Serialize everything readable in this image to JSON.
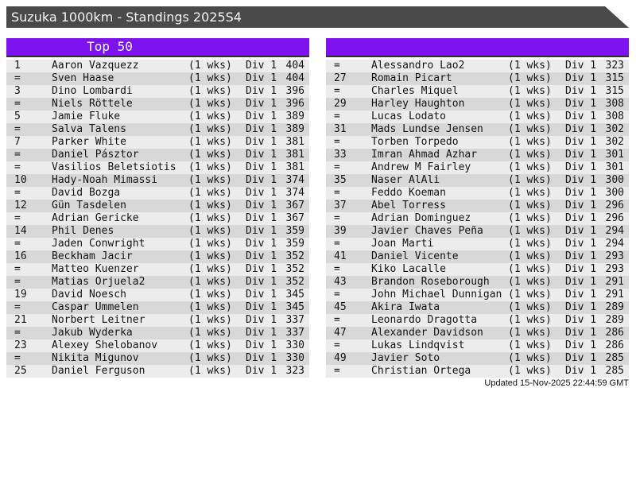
{
  "window": {
    "title": "Suzuka 1000km - Standings 2025S4"
  },
  "colors": {
    "accent_purple": "#7d11f0",
    "title_bar": "#4a4a4a",
    "row_light": "#ececec",
    "row_dark": "#d8d8d8",
    "header_underline": "#303030",
    "text": "#141414"
  },
  "left_table": {
    "header": "Top 50",
    "rows": [
      {
        "rank": "1",
        "name": "Aaron Vazquezz",
        "weeks": "(1 wks)",
        "division": "Div 1",
        "points": "404"
      },
      {
        "rank": "=",
        "name": "Sven Haase",
        "weeks": "(1 wks)",
        "division": "Div 1",
        "points": "404"
      },
      {
        "rank": "3",
        "name": "Dino Lombardi",
        "weeks": "(1 wks)",
        "division": "Div 1",
        "points": "396"
      },
      {
        "rank": "=",
        "name": "Niels Röttele",
        "weeks": "(1 wks)",
        "division": "Div 1",
        "points": "396"
      },
      {
        "rank": "5",
        "name": "Jamie Fluke",
        "weeks": "(1 wks)",
        "division": "Div 1",
        "points": "389"
      },
      {
        "rank": "=",
        "name": "Salva Talens",
        "weeks": "(1 wks)",
        "division": "Div 1",
        "points": "389"
      },
      {
        "rank": "7",
        "name": "Parker White",
        "weeks": "(1 wks)",
        "division": "Div 1",
        "points": "381"
      },
      {
        "rank": "=",
        "name": "Daniel Pásztor",
        "weeks": "(1 wks)",
        "division": "Div 1",
        "points": "381"
      },
      {
        "rank": "=",
        "name": "Vasilios Beletsiotis",
        "weeks": "(1 wks)",
        "division": "Div 1",
        "points": "381"
      },
      {
        "rank": "10",
        "name": "Hady-Noah Mimassi",
        "weeks": "(1 wks)",
        "division": "Div 1",
        "points": "374"
      },
      {
        "rank": "=",
        "name": "David Bozga",
        "weeks": "(1 wks)",
        "division": "Div 1",
        "points": "374"
      },
      {
        "rank": "12",
        "name": "Gün Tasdelen",
        "weeks": "(1 wks)",
        "division": "Div 1",
        "points": "367"
      },
      {
        "rank": "=",
        "name": "Adrian Gericke",
        "weeks": "(1 wks)",
        "division": "Div 1",
        "points": "367"
      },
      {
        "rank": "14",
        "name": "Phil Denes",
        "weeks": "(1 wks)",
        "division": "Div 1",
        "points": "359"
      },
      {
        "rank": "=",
        "name": "Jaden Conwright",
        "weeks": "(1 wks)",
        "division": "Div 1",
        "points": "359"
      },
      {
        "rank": "16",
        "name": "Beckham Jacir",
        "weeks": "(1 wks)",
        "division": "Div 1",
        "points": "352"
      },
      {
        "rank": "=",
        "name": "Matteo Kuenzer",
        "weeks": "(1 wks)",
        "division": "Div 1",
        "points": "352"
      },
      {
        "rank": "=",
        "name": "Matias Orjuela2",
        "weeks": "(1 wks)",
        "division": "Div 1",
        "points": "352"
      },
      {
        "rank": "19",
        "name": "David Noesch",
        "weeks": "(1 wks)",
        "division": "Div 1",
        "points": "345"
      },
      {
        "rank": "=",
        "name": "Caspar Ummelen",
        "weeks": "(1 wks)",
        "division": "Div 1",
        "points": "345"
      },
      {
        "rank": "21",
        "name": "Norbert Leitner",
        "weeks": "(1 wks)",
        "division": "Div 1",
        "points": "337"
      },
      {
        "rank": "=",
        "name": "Jakub Wyderka",
        "weeks": "(1 wks)",
        "division": "Div 1",
        "points": "337"
      },
      {
        "rank": "23",
        "name": "Alexey Shelobanov",
        "weeks": "(1 wks)",
        "division": "Div 1",
        "points": "330"
      },
      {
        "rank": "=",
        "name": "Nikita Migunov",
        "weeks": "(1 wks)",
        "division": "Div 1",
        "points": "330"
      },
      {
        "rank": "25",
        "name": "Daniel Ferguson",
        "weeks": "(1 wks)",
        "division": "Div 1",
        "points": "323"
      }
    ]
  },
  "right_table": {
    "header": "",
    "rows": [
      {
        "rank": "=",
        "name": "Alessandro Lao2",
        "weeks": "(1 wks)",
        "division": "Div 1",
        "points": "323"
      },
      {
        "rank": "27",
        "name": "Romain Picart",
        "weeks": "(1 wks)",
        "division": "Div 1",
        "points": "315"
      },
      {
        "rank": "=",
        "name": "Charles Miquel",
        "weeks": "(1 wks)",
        "division": "Div 1",
        "points": "315"
      },
      {
        "rank": "29",
        "name": "Harley Haughton",
        "weeks": "(1 wks)",
        "division": "Div 1",
        "points": "308"
      },
      {
        "rank": "=",
        "name": "Lucas Lodato",
        "weeks": "(1 wks)",
        "division": "Div 1",
        "points": "308"
      },
      {
        "rank": "31",
        "name": "Mads Lundse Jensen",
        "weeks": "(1 wks)",
        "division": "Div 1",
        "points": "302"
      },
      {
        "rank": "=",
        "name": "Torben Torpedo",
        "weeks": "(1 wks)",
        "division": "Div 1",
        "points": "302"
      },
      {
        "rank": "33",
        "name": "Imran Ahmad Azhar",
        "weeks": "(1 wks)",
        "division": "Div 1",
        "points": "301"
      },
      {
        "rank": "=",
        "name": "Andrew M Fairley",
        "weeks": "(1 wks)",
        "division": "Div 1",
        "points": "301"
      },
      {
        "rank": "35",
        "name": "Naser AlAli",
        "weeks": "(1 wks)",
        "division": "Div 1",
        "points": "300"
      },
      {
        "rank": "=",
        "name": "Feddo Koeman",
        "weeks": "(1 wks)",
        "division": "Div 1",
        "points": "300"
      },
      {
        "rank": "37",
        "name": "Abel Torress",
        "weeks": "(1 wks)",
        "division": "Div 1",
        "points": "296"
      },
      {
        "rank": "=",
        "name": "Adrian Dominguez",
        "weeks": "(1 wks)",
        "division": "Div 1",
        "points": "296"
      },
      {
        "rank": "39",
        "name": "Javier Chaves Peña",
        "weeks": "(1 wks)",
        "division": "Div 1",
        "points": "294"
      },
      {
        "rank": "=",
        "name": "Joan Marti",
        "weeks": "(1 wks)",
        "division": "Div 1",
        "points": "294"
      },
      {
        "rank": "41",
        "name": "Daniel Vicente",
        "weeks": "(1 wks)",
        "division": "Div 1",
        "points": "293"
      },
      {
        "rank": "=",
        "name": "Kiko Lacalle",
        "weeks": "(1 wks)",
        "division": "Div 1",
        "points": "293"
      },
      {
        "rank": "43",
        "name": "Brandon Roseborough",
        "weeks": "(1 wks)",
        "division": "Div 1",
        "points": "291"
      },
      {
        "rank": "=",
        "name": "John Michael Dunnigan",
        "weeks": "(1 wks)",
        "division": "Div 1",
        "points": "291"
      },
      {
        "rank": "45",
        "name": "Akira Iwata",
        "weeks": "(1 wks)",
        "division": "Div 1",
        "points": "289"
      },
      {
        "rank": "=",
        "name": "Leonardo Dragotta",
        "weeks": "(1 wks)",
        "division": "Div 1",
        "points": "289"
      },
      {
        "rank": "47",
        "name": "Alexander Davidson",
        "weeks": "(1 wks)",
        "division": "Div 1",
        "points": "286"
      },
      {
        "rank": "=",
        "name": "Lukas Lindqvist",
        "weeks": "(1 wks)",
        "division": "Div 1",
        "points": "286"
      },
      {
        "rank": "49",
        "name": "Javier Soto",
        "weeks": "(1 wks)",
        "division": "Div 1",
        "points": "285"
      },
      {
        "rank": "=",
        "name": "Christian Ortega",
        "weeks": "(1 wks)",
        "division": "Div 1",
        "points": "285"
      }
    ]
  },
  "footer": {
    "updated": "Updated 15-Nov-2025 22:44:59 GMT"
  }
}
